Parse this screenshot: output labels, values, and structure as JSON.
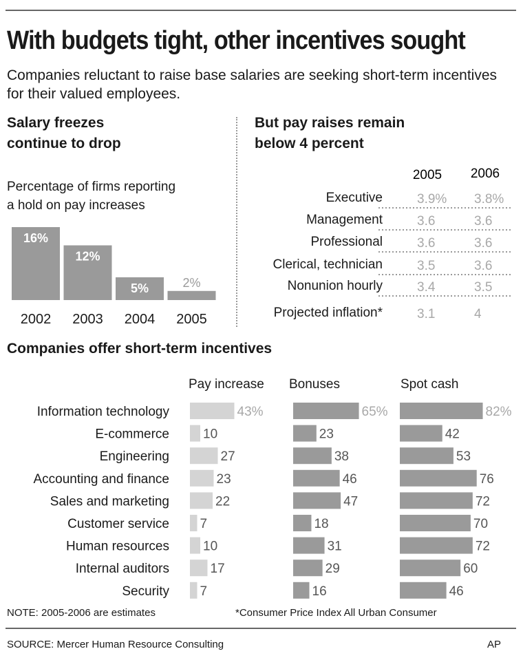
{
  "header": {
    "title": "With budgets tight, other incentives sought",
    "subtitle": "Companies reluctant to raise base salaries are seeking short-term incentives for their valued employees."
  },
  "freezes": {
    "title_line1": "Salary freezes",
    "title_line2": "continue to drop",
    "desc_line1": "Percentage of firms reporting",
    "desc_line2": "a hold on pay increases"
  },
  "raises": {
    "title_line1": "But pay raises remain",
    "title_line2": "below 4 percent",
    "col_2005": "2005",
    "col_2006": "2006"
  },
  "incentives": {
    "title": "Companies offer short-term incentives",
    "col_pay": "Pay increase",
    "col_bonus": "Bonuses",
    "col_spot": "Spot cash"
  },
  "footer": {
    "note": "NOTE: 2005-2006 are estimates",
    "cpi_note": "*Consumer Price Index All Urban Consumer",
    "source": "SOURCE: Mercer Human Resource Consulting",
    "credit": "AP"
  },
  "colors": {
    "bar_dark": "#9a9a9a",
    "bar_light": "#d4d4d4",
    "value_light": "#a8a8a8"
  },
  "chart_data": [
    {
      "type": "bar",
      "title": "Salary freezes continue to drop",
      "categories": [
        "2002",
        "2003",
        "2004",
        "2005"
      ],
      "values": [
        16,
        12,
        5,
        2
      ],
      "value_labels": [
        "16%",
        "12%",
        "5%",
        "2%"
      ]
    },
    {
      "type": "table",
      "title": "But pay raises remain below 4 percent",
      "columns": [
        "2005",
        "2006"
      ],
      "rows": [
        {
          "label": "Executive",
          "values": [
            "3.9%",
            "3.8%"
          ]
        },
        {
          "label": "Management",
          "values": [
            "3.6",
            "3.6"
          ]
        },
        {
          "label": "Professional",
          "values": [
            "3.6",
            "3.6"
          ]
        },
        {
          "label": "Clerical, technician",
          "values": [
            "3.5",
            "3.6"
          ]
        },
        {
          "label": "Nonunion hourly",
          "values": [
            "3.4",
            "3.5"
          ]
        },
        {
          "label": "Projected inflation*",
          "values": [
            "3.1",
            "4"
          ]
        }
      ]
    },
    {
      "type": "bar",
      "title": "Companies offer short-term incentives",
      "categories": [
        "Information technology",
        "E-commerce",
        "Engineering",
        "Accounting and finance",
        "Sales and marketing",
        "Customer service",
        "Human resources",
        "Internal auditors",
        "Security"
      ],
      "series": [
        {
          "name": "Pay increase",
          "values": [
            43,
            10,
            27,
            23,
            22,
            7,
            10,
            17,
            7
          ],
          "value_labels": [
            "43%",
            "10",
            "27",
            "23",
            "22",
            "7",
            "10",
            "17",
            "7"
          ]
        },
        {
          "name": "Bonuses",
          "values": [
            65,
            23,
            38,
            46,
            47,
            18,
            31,
            29,
            16
          ],
          "value_labels": [
            "65%",
            "23",
            "38",
            "46",
            "47",
            "18",
            "31",
            "29",
            "16"
          ]
        },
        {
          "name": "Spot cash",
          "values": [
            82,
            42,
            53,
            76,
            72,
            70,
            72,
            60,
            46
          ],
          "value_labels": [
            "82%",
            "42",
            "53",
            "76",
            "72",
            "70",
            "72",
            "60",
            "46"
          ]
        }
      ]
    }
  ]
}
